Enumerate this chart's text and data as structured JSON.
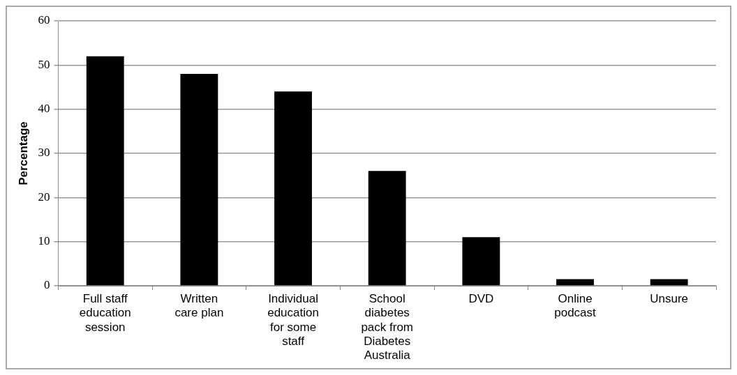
{
  "chart_data": {
    "type": "bar",
    "ylabel": "Percentage",
    "categories": [
      "Full staff education session",
      "Written care plan",
      "Individual education for some staff",
      "School diabetes pack from Diabetes Australia",
      "DVD",
      "Online podcast",
      "Unsure"
    ],
    "values": [
      52,
      48,
      44,
      26,
      11,
      1.5,
      1.5
    ],
    "color": "#000000",
    "ylim": [
      0,
      60
    ],
    "yticks": [
      0,
      10,
      20,
      30,
      40,
      50,
      60
    ],
    "grid": "y",
    "legend": false
  }
}
